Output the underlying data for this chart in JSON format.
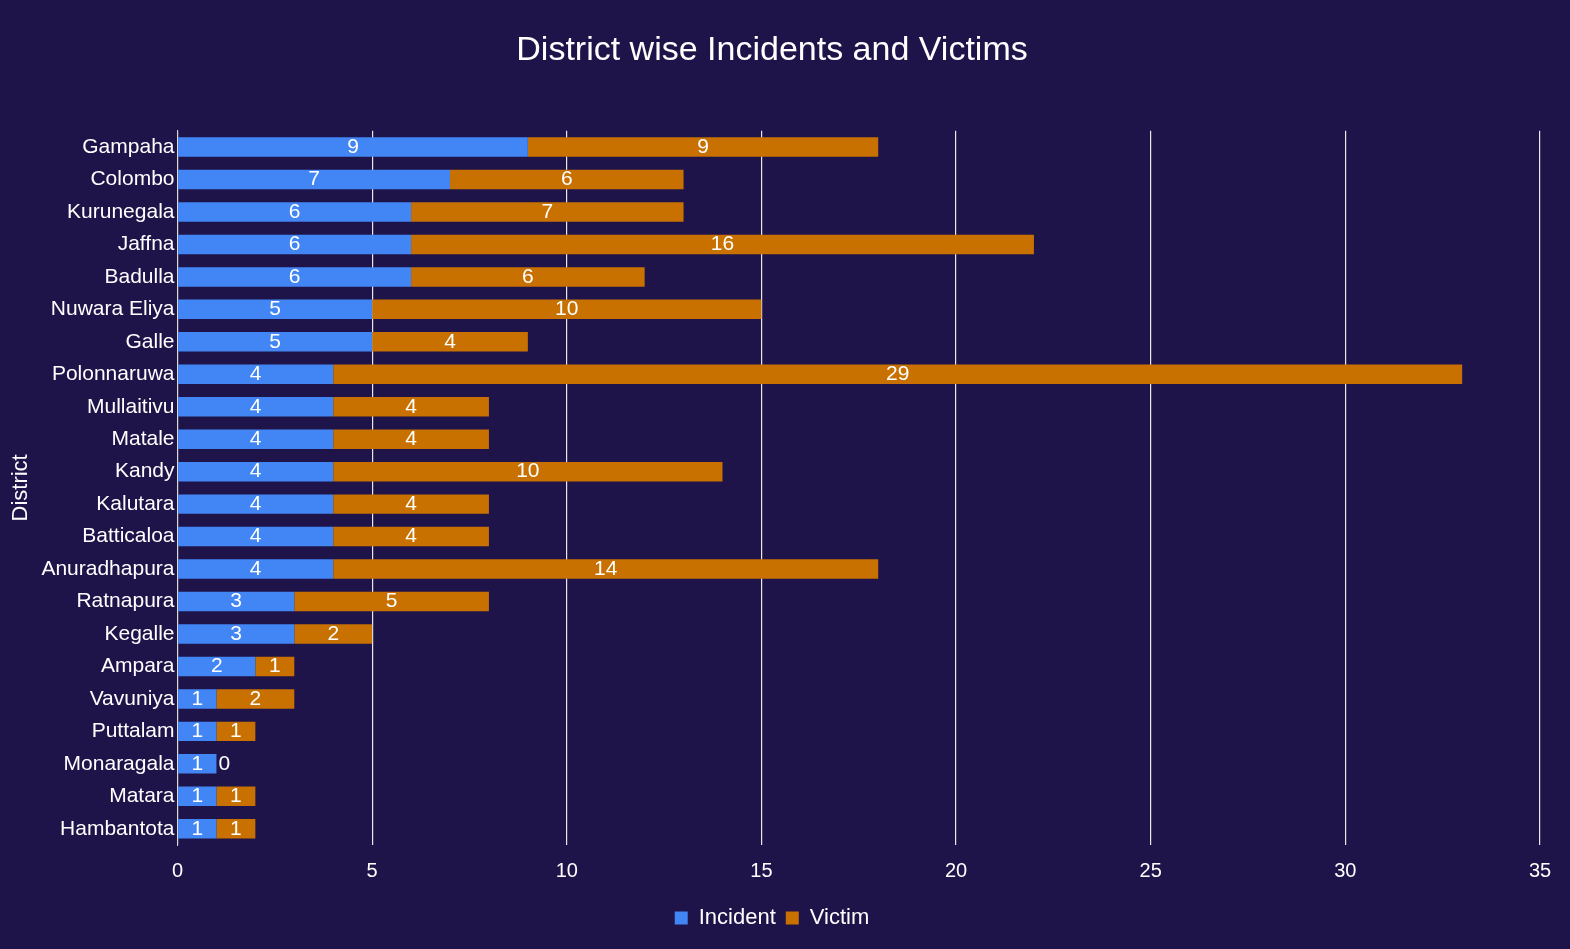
{
  "chart_data": {
    "type": "bar",
    "orientation": "horizontal",
    "stacked": true,
    "title": "District wise Incidents and Victims",
    "ylabel": "District",
    "categories": [
      "Gampaha",
      "Colombo",
      "Kurunegala",
      "Jaffna",
      "Badulla",
      "Nuwara Eliya",
      "Galle",
      "Polonnaruwa",
      "Mullaitivu",
      "Matale",
      "Kandy",
      "Kalutara",
      "Batticaloa",
      "Anuradhapura",
      "Ratnapura",
      "Kegalle",
      "Ampara",
      "Vavuniya",
      "Puttalam",
      "Monaragala",
      "Matara",
      "Hambantota"
    ],
    "series": [
      {
        "name": "Incident",
        "color": "#4285f4",
        "values": [
          9,
          7,
          6,
          6,
          6,
          5,
          5,
          4,
          4,
          4,
          4,
          4,
          4,
          4,
          3,
          3,
          2,
          1,
          1,
          1,
          1,
          1
        ]
      },
      {
        "name": "Victim",
        "color": "#c87000",
        "values": [
          9,
          6,
          7,
          16,
          6,
          10,
          4,
          29,
          4,
          4,
          10,
          4,
          4,
          14,
          5,
          2,
          1,
          2,
          1,
          0,
          1,
          1
        ]
      }
    ],
    "xlim": [
      0,
      35
    ],
    "xticks": [
      0,
      5,
      10,
      15,
      20,
      25,
      30,
      35
    ],
    "grid": "x",
    "legend": "bottom",
    "data_labels": true
  }
}
